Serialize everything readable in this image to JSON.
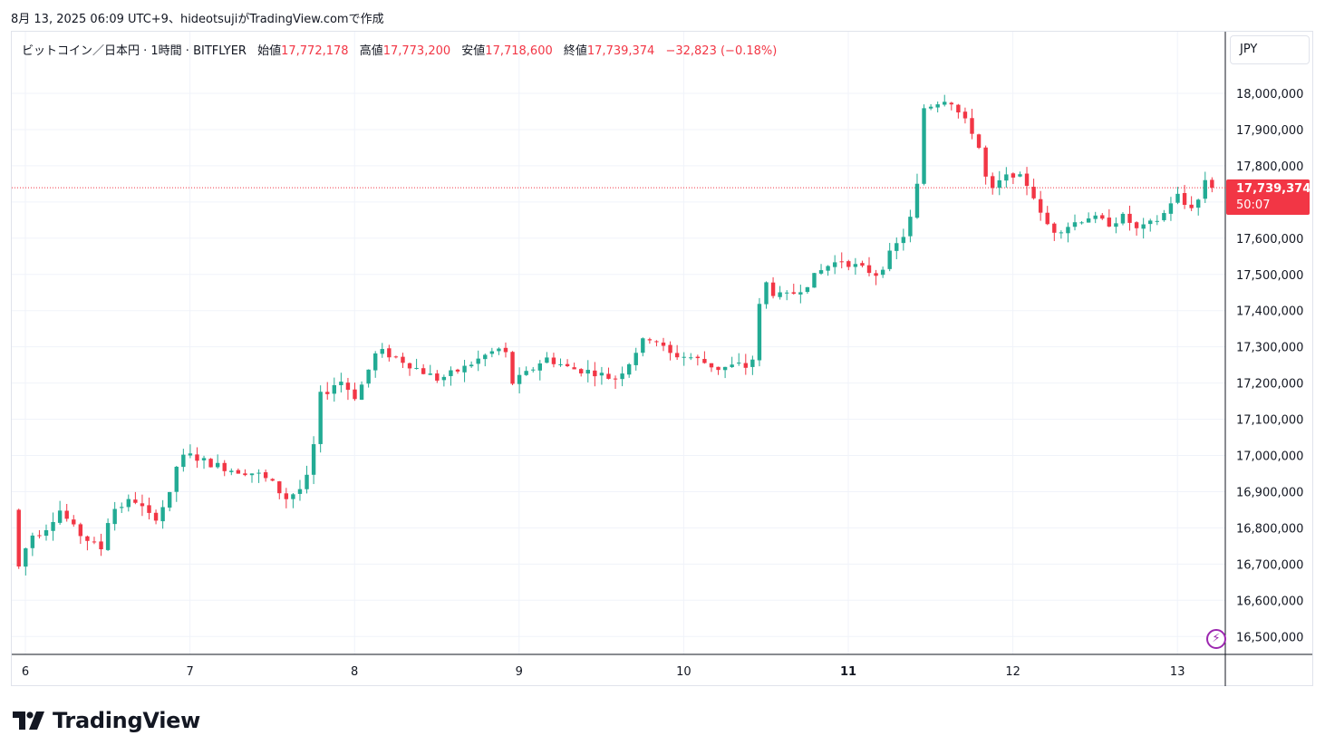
{
  "header": {
    "caption": "8月 13, 2025 06:09 UTC+9、hideotsujiがTradingView.comで作成"
  },
  "legend": {
    "symbol": "ビットコイン／日本円 · 1時間 · BITFLYER",
    "open_label": "始値",
    "open": "17,772,178",
    "high_label": "高値",
    "high": "17,773,200",
    "low_label": "安値",
    "low": "17,718,600",
    "close_label": "終値",
    "close": "17,739,374",
    "change": "−32,823 (−0.18%)"
  },
  "currency_button": "JPY",
  "last_price": {
    "value": "17,739,374",
    "countdown": "50:07"
  },
  "brand": {
    "name": "TradingView"
  },
  "colors": {
    "up": "#22ab94",
    "down": "#f23645",
    "grid": "#f0f3fa",
    "border": "#e0e3eb",
    "accent": "#9c27b0"
  },
  "icons": {
    "lightning": "lightning-icon"
  },
  "chart_data": {
    "type": "candlestick",
    "interval": "1h",
    "grid": true,
    "ylim": [
      16450000,
      18080000
    ],
    "yticks": [
      "18,000,000",
      "17,900,000",
      "17,800,000",
      "17,700,000",
      "17,600,000",
      "17,500,000",
      "17,400,000",
      "17,300,000",
      "17,200,000",
      "17,100,000",
      "17,000,000",
      "16,900,000",
      "16,800,000",
      "16,700,000",
      "16,600,000",
      "16,500,000"
    ],
    "x_labels": [
      "6",
      "7",
      "8",
      "9",
      "10",
      "11",
      "12",
      "13"
    ],
    "x_day_start": 6,
    "last_price": 17739374,
    "close_path": [
      [
        5.96,
        16850000
      ],
      [
        5.97,
        16910000
      ],
      [
        5.98,
        16650000
      ],
      [
        6.0,
        16690000
      ],
      [
        6.04,
        16740000
      ],
      [
        6.08,
        16780000
      ],
      [
        6.15,
        16790000
      ],
      [
        6.25,
        16850000
      ],
      [
        6.35,
        16790000
      ],
      [
        6.5,
        16740000
      ],
      [
        6.56,
        16850000
      ],
      [
        6.62,
        16860000
      ],
      [
        6.7,
        16880000
      ],
      [
        6.82,
        16820000
      ],
      [
        6.92,
        16890000
      ],
      [
        6.97,
        16990000
      ],
      [
        7.05,
        17000000
      ],
      [
        7.15,
        16980000
      ],
      [
        7.3,
        16960000
      ],
      [
        7.45,
        16950000
      ],
      [
        7.55,
        16920000
      ],
      [
        7.62,
        16880000
      ],
      [
        7.72,
        16910000
      ],
      [
        7.78,
        16960000
      ],
      [
        7.82,
        17160000
      ],
      [
        7.88,
        17180000
      ],
      [
        7.95,
        17210000
      ],
      [
        8.05,
        17160000
      ],
      [
        8.12,
        17230000
      ],
      [
        8.18,
        17290000
      ],
      [
        8.3,
        17270000
      ],
      [
        8.42,
        17240000
      ],
      [
        8.55,
        17210000
      ],
      [
        8.7,
        17240000
      ],
      [
        8.85,
        17280000
      ],
      [
        8.95,
        17300000
      ],
      [
        9.0,
        17200000
      ],
      [
        9.1,
        17230000
      ],
      [
        9.2,
        17270000
      ],
      [
        9.35,
        17240000
      ],
      [
        9.5,
        17230000
      ],
      [
        9.62,
        17210000
      ],
      [
        9.7,
        17250000
      ],
      [
        9.78,
        17310000
      ],
      [
        9.85,
        17330000
      ],
      [
        9.95,
        17280000
      ],
      [
        10.1,
        17270000
      ],
      [
        10.25,
        17240000
      ],
      [
        10.38,
        17250000
      ],
      [
        10.45,
        17240000
      ],
      [
        10.48,
        17320000
      ],
      [
        10.52,
        17490000
      ],
      [
        10.6,
        17440000
      ],
      [
        10.68,
        17440000
      ],
      [
        10.78,
        17470000
      ],
      [
        10.9,
        17520000
      ],
      [
        11.0,
        17540000
      ],
      [
        11.1,
        17520000
      ],
      [
        11.22,
        17500000
      ],
      [
        11.3,
        17560000
      ],
      [
        11.38,
        17610000
      ],
      [
        11.45,
        17690000
      ],
      [
        11.5,
        17960000
      ],
      [
        11.6,
        17980000
      ],
      [
        11.65,
        17990000
      ],
      [
        11.72,
        17940000
      ],
      [
        11.82,
        17880000
      ],
      [
        11.9,
        17720000
      ],
      [
        11.97,
        17760000
      ],
      [
        12.05,
        17780000
      ],
      [
        12.15,
        17740000
      ],
      [
        12.22,
        17650000
      ],
      [
        12.3,
        17620000
      ],
      [
        12.4,
        17640000
      ],
      [
        12.5,
        17660000
      ],
      [
        12.62,
        17640000
      ],
      [
        12.72,
        17660000
      ],
      [
        12.8,
        17620000
      ],
      [
        12.88,
        17640000
      ],
      [
        12.95,
        17660000
      ],
      [
        13.0,
        17700000
      ],
      [
        13.05,
        17720000
      ],
      [
        13.1,
        17680000
      ],
      [
        13.18,
        17710000
      ],
      [
        13.22,
        17780000
      ],
      [
        13.25,
        17739374
      ]
    ]
  }
}
